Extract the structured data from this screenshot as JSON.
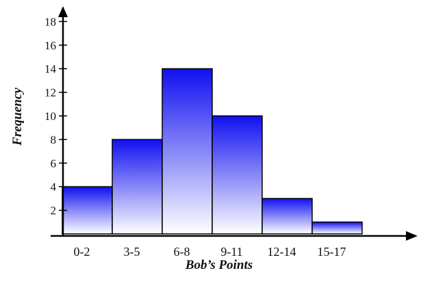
{
  "chart_data": {
    "type": "bar",
    "title": "",
    "xlabel": "Bob’s Points",
    "ylabel": "Frequency",
    "categories": [
      "0-2",
      "3-5",
      "6-8",
      "9-11",
      "12-14",
      "15-17"
    ],
    "values": [
      4,
      8,
      14,
      10,
      3,
      1
    ],
    "ylim": [
      0,
      18
    ],
    "yticks": [
      2,
      4,
      6,
      8,
      10,
      12,
      14,
      16,
      18
    ],
    "grid": false,
    "colors": {
      "bar_top": "#1010f0",
      "bar_bottom": "#ffffff",
      "outline": "#000000",
      "axis": "#000000"
    }
  }
}
